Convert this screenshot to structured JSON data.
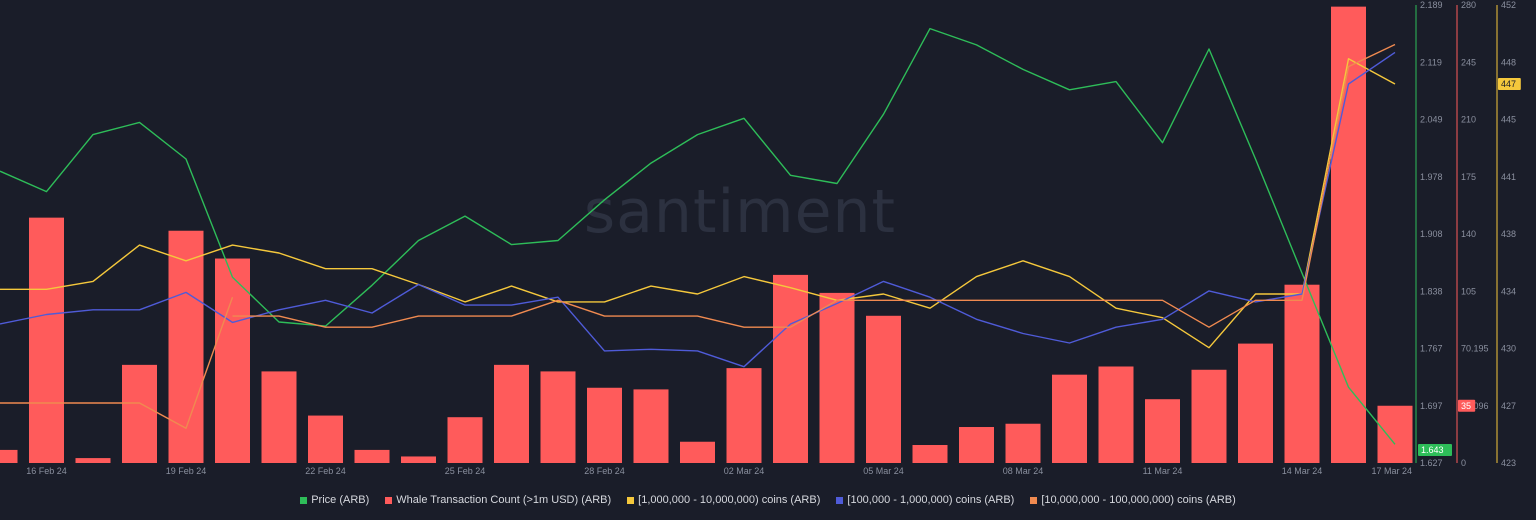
{
  "watermark": "santiment",
  "chart_data": {
    "type": "bar",
    "x": [
      "15 Feb 24",
      "16 Feb 24",
      "17 Feb 24",
      "18 Feb 24",
      "19 Feb 24",
      "20 Feb 24",
      "21 Feb 24",
      "22 Feb 24",
      "23 Feb 24",
      "24 Feb 24",
      "25 Feb 24",
      "26 Feb 24",
      "27 Feb 24",
      "28 Feb 24",
      "29 Feb 24",
      "01 Mar 24",
      "02 Mar 24",
      "03 Mar 24",
      "04 Mar 24",
      "05 Mar 24",
      "06 Mar 24",
      "07 Mar 24",
      "08 Mar 24",
      "09 Mar 24",
      "10 Mar 24",
      "11 Mar 24",
      "12 Mar 24",
      "13 Mar 24",
      "14 Mar 24",
      "15 Mar 24",
      "16 Mar 24",
      "17 Mar 24"
    ],
    "x_tick_labels": [
      "16 Feb 24",
      "19 Feb 24",
      "22 Feb 24",
      "25 Feb 24",
      "28 Feb 24",
      "02 Mar 24",
      "05 Mar 24",
      "08 Mar 24",
      "11 Mar 24",
      "14 Mar 24",
      "17 Mar 24"
    ],
    "series": [
      {
        "name": "Price (ARB)",
        "type": "line",
        "color": "#2ebd59",
        "axis": "price",
        "values": [
          1.985,
          1.96,
          2.03,
          2.045,
          2.0,
          1.855,
          1.8,
          1.795,
          1.845,
          1.9,
          1.93,
          1.895,
          1.9,
          1.95,
          1.995,
          2.03,
          2.05,
          1.98,
          1.97,
          2.055,
          2.16,
          2.14,
          2.11,
          2.085,
          2.095,
          2.02,
          2.135,
          2.0,
          1.86,
          1.72,
          1.65,
          null
        ]
      },
      {
        "name": "Whale Transaction Count (>1m USD) (ARB)",
        "type": "bar",
        "color": "#ff5b5b",
        "axis": "whale",
        "values": [
          8,
          150,
          3,
          60,
          142,
          125,
          56,
          29,
          8,
          4,
          28,
          60,
          56,
          46,
          45,
          13,
          58,
          115,
          104,
          90,
          11,
          22,
          24,
          54,
          59,
          39,
          57,
          73,
          109,
          279,
          35,
          null
        ]
      },
      {
        "name": "[1,000,000 - 10,000,000) coins (ARB)",
        "type": "line",
        "color": "#f5c83c",
        "axis": "supply",
        "values": [
          434,
          434,
          434.5,
          436.8,
          435.8,
          436.8,
          436.3,
          435.3,
          435.3,
          434.3,
          433.2,
          434.2,
          433.2,
          433.2,
          434.2,
          433.7,
          434.8,
          434.1,
          433.3,
          433.7,
          432.8,
          434.8,
          435.8,
          434.8,
          432.8,
          432.2,
          430.3,
          433.7,
          433.7,
          448.6,
          447,
          null
        ]
      },
      {
        "name": "[100,000  - 1,000,000) coins (ARB)",
        "type": "line",
        "color": "#4f5bd8",
        "axis": "supply",
        "values": [
          431.8,
          432.4,
          432.7,
          432.7,
          433.8,
          431.9,
          432.7,
          433.3,
          432.5,
          434.3,
          433,
          433,
          433.5,
          430.1,
          430.2,
          430.1,
          429.1,
          431.8,
          433.1,
          434.5,
          433.5,
          432.1,
          431.2,
          430.6,
          431.6,
          432.1,
          433.9,
          433.2,
          433.7,
          447,
          449,
          null
        ]
      },
      {
        "name": "[10,000,000 - 100,000,000) coins (ARB)",
        "type": "line",
        "color": "#f08a50",
        "axis": "supply",
        "values": [
          null,
          null,
          null,
          null,
          null,
          432.3,
          432.3,
          431.6,
          431.6,
          432.3,
          432.3,
          432.3,
          433.3,
          432.3,
          432.3,
          432.3,
          431.6,
          431.6,
          433.3,
          433.3,
          433.3,
          433.3,
          433.3,
          433.3,
          433.3,
          433.3,
          431.6,
          433.3,
          433.3,
          448.1,
          449.5,
          null
        ]
      },
      {
        "name": "[10,000,000 - 100,000,000) coins (ARB) lower band",
        "type": "line",
        "color": "#f08a50",
        "axis": "supply",
        "hidden_in_legend": true,
        "values": [
          426.8,
          426.8,
          426.8,
          426.8,
          425.2,
          433.5,
          null,
          null,
          null,
          null,
          null,
          null,
          null,
          null,
          null,
          null,
          null,
          null,
          null,
          null,
          null,
          null,
          null,
          null,
          null,
          null,
          null,
          null,
          null,
          null,
          null,
          null
        ]
      }
    ],
    "axes": {
      "price": {
        "ticks": [
          "2.189",
          "2.119",
          "2.049",
          "1.978",
          "1.908",
          "1.838",
          "1.767",
          "1.697",
          "1.627"
        ],
        "color": "#2ebd59",
        "ylim": [
          1.627,
          2.189
        ],
        "current_label": "1.643"
      },
      "whale": {
        "ticks": [
          "280",
          "245",
          "210",
          "175",
          "140",
          "105",
          "70.195",
          "35.096",
          "0"
        ],
        "color": "#ff5b5b",
        "ylim": [
          0,
          280
        ],
        "current_label": "35"
      },
      "supply": {
        "ticks": [
          "452",
          "448",
          "445",
          "441",
          "438",
          "434",
          "430",
          "427",
          "423"
        ],
        "color": "#f5c83c",
        "ylim": [
          423,
          452
        ],
        "current_label": "447"
      }
    },
    "grid": false,
    "legend_position": "bottom"
  },
  "legend": [
    {
      "label": "Price (ARB)",
      "color": "#2ebd59"
    },
    {
      "label": "Whale Transaction Count (>1m USD) (ARB)",
      "color": "#ff5b5b"
    },
    {
      "label": "[1,000,000 - 10,000,000) coins (ARB)",
      "color": "#f5c83c"
    },
    {
      "label": "[100,000  - 1,000,000) coins (ARB)",
      "color": "#4f5bd8"
    },
    {
      "label": "[10,000,000 - 100,000,000) coins (ARB)",
      "color": "#f08a50"
    }
  ]
}
